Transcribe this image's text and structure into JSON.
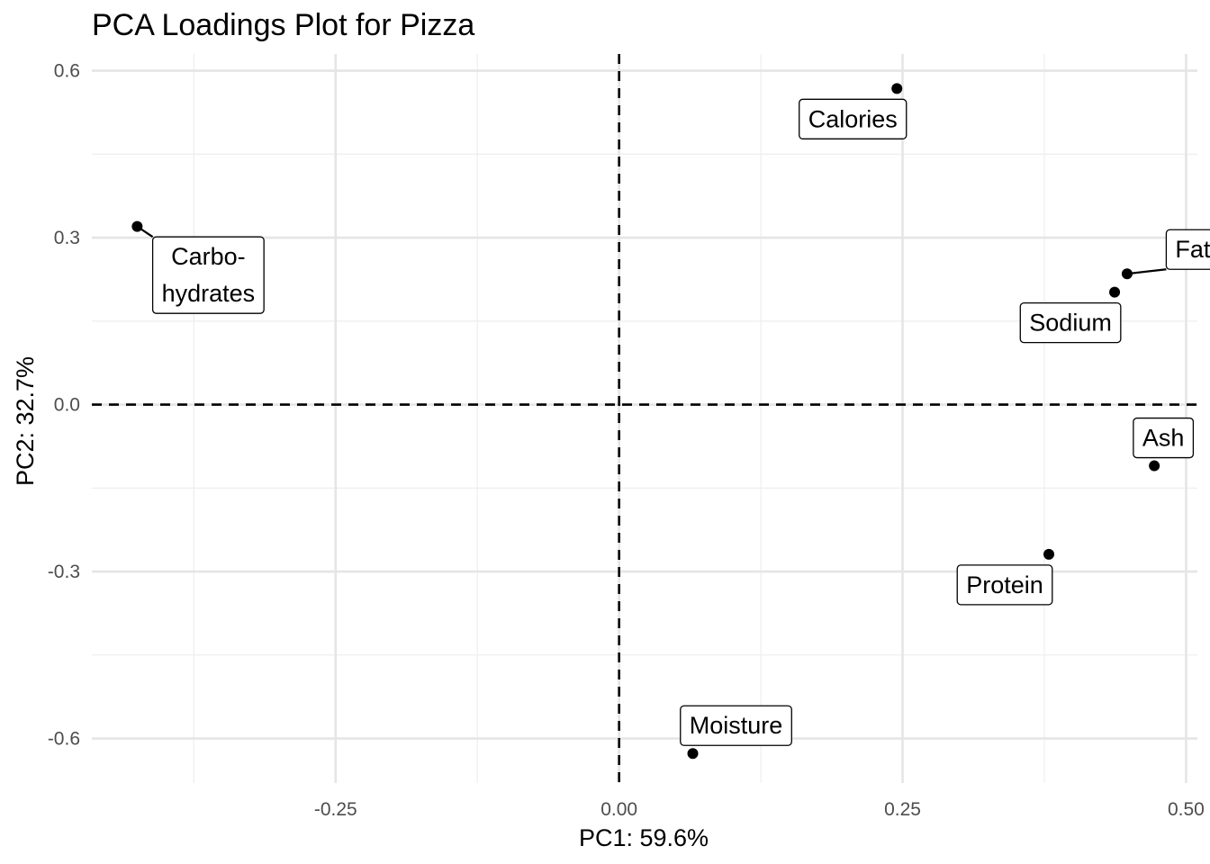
{
  "chart_data": {
    "type": "scatter",
    "title": "PCA Loadings Plot for Pizza",
    "xlabel": "PC1: 59.6%",
    "ylabel": "PC2: 32.7%",
    "xlim": [
      -0.465,
      0.51
    ],
    "ylim": [
      -0.68,
      0.63
    ],
    "x_ticks": [
      -0.25,
      0.0,
      0.25,
      0.5
    ],
    "x_tick_labels": [
      "-0.25",
      "0.00",
      "0.25",
      "0.50"
    ],
    "y_ticks": [
      -0.6,
      -0.3,
      0.0,
      0.3,
      0.6
    ],
    "y_tick_labels": [
      "-0.6",
      "-0.3",
      "0.0",
      "0.3",
      "0.6"
    ],
    "reference_lines": {
      "x": 0,
      "y": 0,
      "style": "dashed"
    },
    "grid": true,
    "points": [
      {
        "label": "Calories",
        "x": 0.245,
        "y": 0.568
      },
      {
        "label": "Carbo-\nhydrates",
        "x": -0.425,
        "y": 0.32
      },
      {
        "label": "Fat",
        "x": 0.448,
        "y": 0.235
      },
      {
        "label": "Sodium",
        "x": 0.437,
        "y": 0.202
      },
      {
        "label": "Ash",
        "x": 0.472,
        "y": -0.11
      },
      {
        "label": "Protein",
        "x": 0.379,
        "y": -0.269
      },
      {
        "label": "Moisture",
        "x": 0.065,
        "y": -0.627
      }
    ]
  }
}
